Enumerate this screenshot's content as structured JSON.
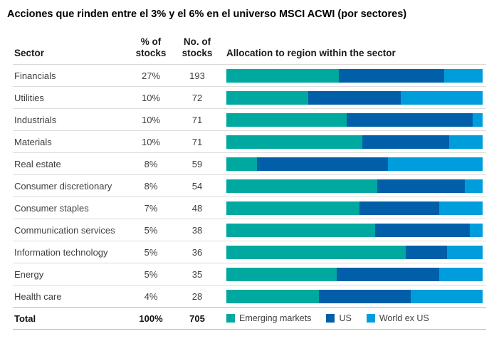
{
  "title": "Acciones que rinden entre el 3% y el 6% en el universo MSCI ACWI (por sectores)",
  "table": {
    "headers": {
      "sector": "Sector",
      "pct_line1": "% of",
      "pct_line2": "stocks",
      "num_line1": "No. of",
      "num_line2": "stocks",
      "allocation": "Allocation to region within the sector"
    },
    "rows": [
      {
        "sector": "Financials",
        "pct_of_stocks": "27%",
        "no_of_stocks": "193"
      },
      {
        "sector": "Utilities",
        "pct_of_stocks": "10%",
        "no_of_stocks": "72"
      },
      {
        "sector": "Industrials",
        "pct_of_stocks": "10%",
        "no_of_stocks": "71"
      },
      {
        "sector": "Materials",
        "pct_of_stocks": "10%",
        "no_of_stocks": "71"
      },
      {
        "sector": "Real estate",
        "pct_of_stocks": "8%",
        "no_of_stocks": "59"
      },
      {
        "sector": "Consumer discretionary",
        "pct_of_stocks": "8%",
        "no_of_stocks": "54"
      },
      {
        "sector": "Consumer staples",
        "pct_of_stocks": "7%",
        "no_of_stocks": "48"
      },
      {
        "sector": "Communication services",
        "pct_of_stocks": "5%",
        "no_of_stocks": "38"
      },
      {
        "sector": "Information technology",
        "pct_of_stocks": "5%",
        "no_of_stocks": "36"
      },
      {
        "sector": "Energy",
        "pct_of_stocks": "5%",
        "no_of_stocks": "35"
      },
      {
        "sector": "Health care",
        "pct_of_stocks": "4%",
        "no_of_stocks": "28"
      }
    ],
    "total": {
      "label": "Total",
      "pct_of_stocks": "100%",
      "no_of_stocks": "705"
    }
  },
  "legend": [
    {
      "label": "Emerging markets",
      "color": "#00A9A0"
    },
    {
      "label": "US",
      "color": "#005FA8"
    },
    {
      "label": "World ex US",
      "color": "#009DDC"
    }
  ],
  "colors": {
    "emerging_markets": "#00A9A0",
    "us": "#005FA8",
    "world_ex_us": "#009DDC",
    "row_divider": "#dcdcdc",
    "text_dark": "#1a1a1a",
    "text_gray": "#3f3f3f"
  },
  "chart_data": {
    "type": "bar",
    "stacked": true,
    "orientation": "horizontal",
    "title": "Allocation to region within the sector",
    "xlabel": "",
    "ylabel": "Sector",
    "xlim": [
      0,
      100
    ],
    "unit": "percent allocation within sector",
    "grid": false,
    "legend_position": "bottom",
    "categories": [
      "Financials",
      "Utilities",
      "Industrials",
      "Materials",
      "Real estate",
      "Consumer discretionary",
      "Consumer staples",
      "Communication services",
      "Information technology",
      "Energy",
      "Health care"
    ],
    "series": [
      {
        "name": "Emerging markets",
        "color": "#00A9A0",
        "values": [
          44,
          32,
          47,
          53,
          12,
          59,
          52,
          58,
          70,
          43,
          36
        ]
      },
      {
        "name": "US",
        "color": "#005FA8",
        "values": [
          41,
          36,
          49,
          34,
          51,
          34,
          31,
          37,
          16,
          40,
          36
        ]
      },
      {
        "name": "World ex US",
        "color": "#009DDC",
        "values": [
          15,
          32,
          4,
          13,
          37,
          7,
          17,
          5,
          14,
          17,
          28
        ]
      }
    ]
  }
}
